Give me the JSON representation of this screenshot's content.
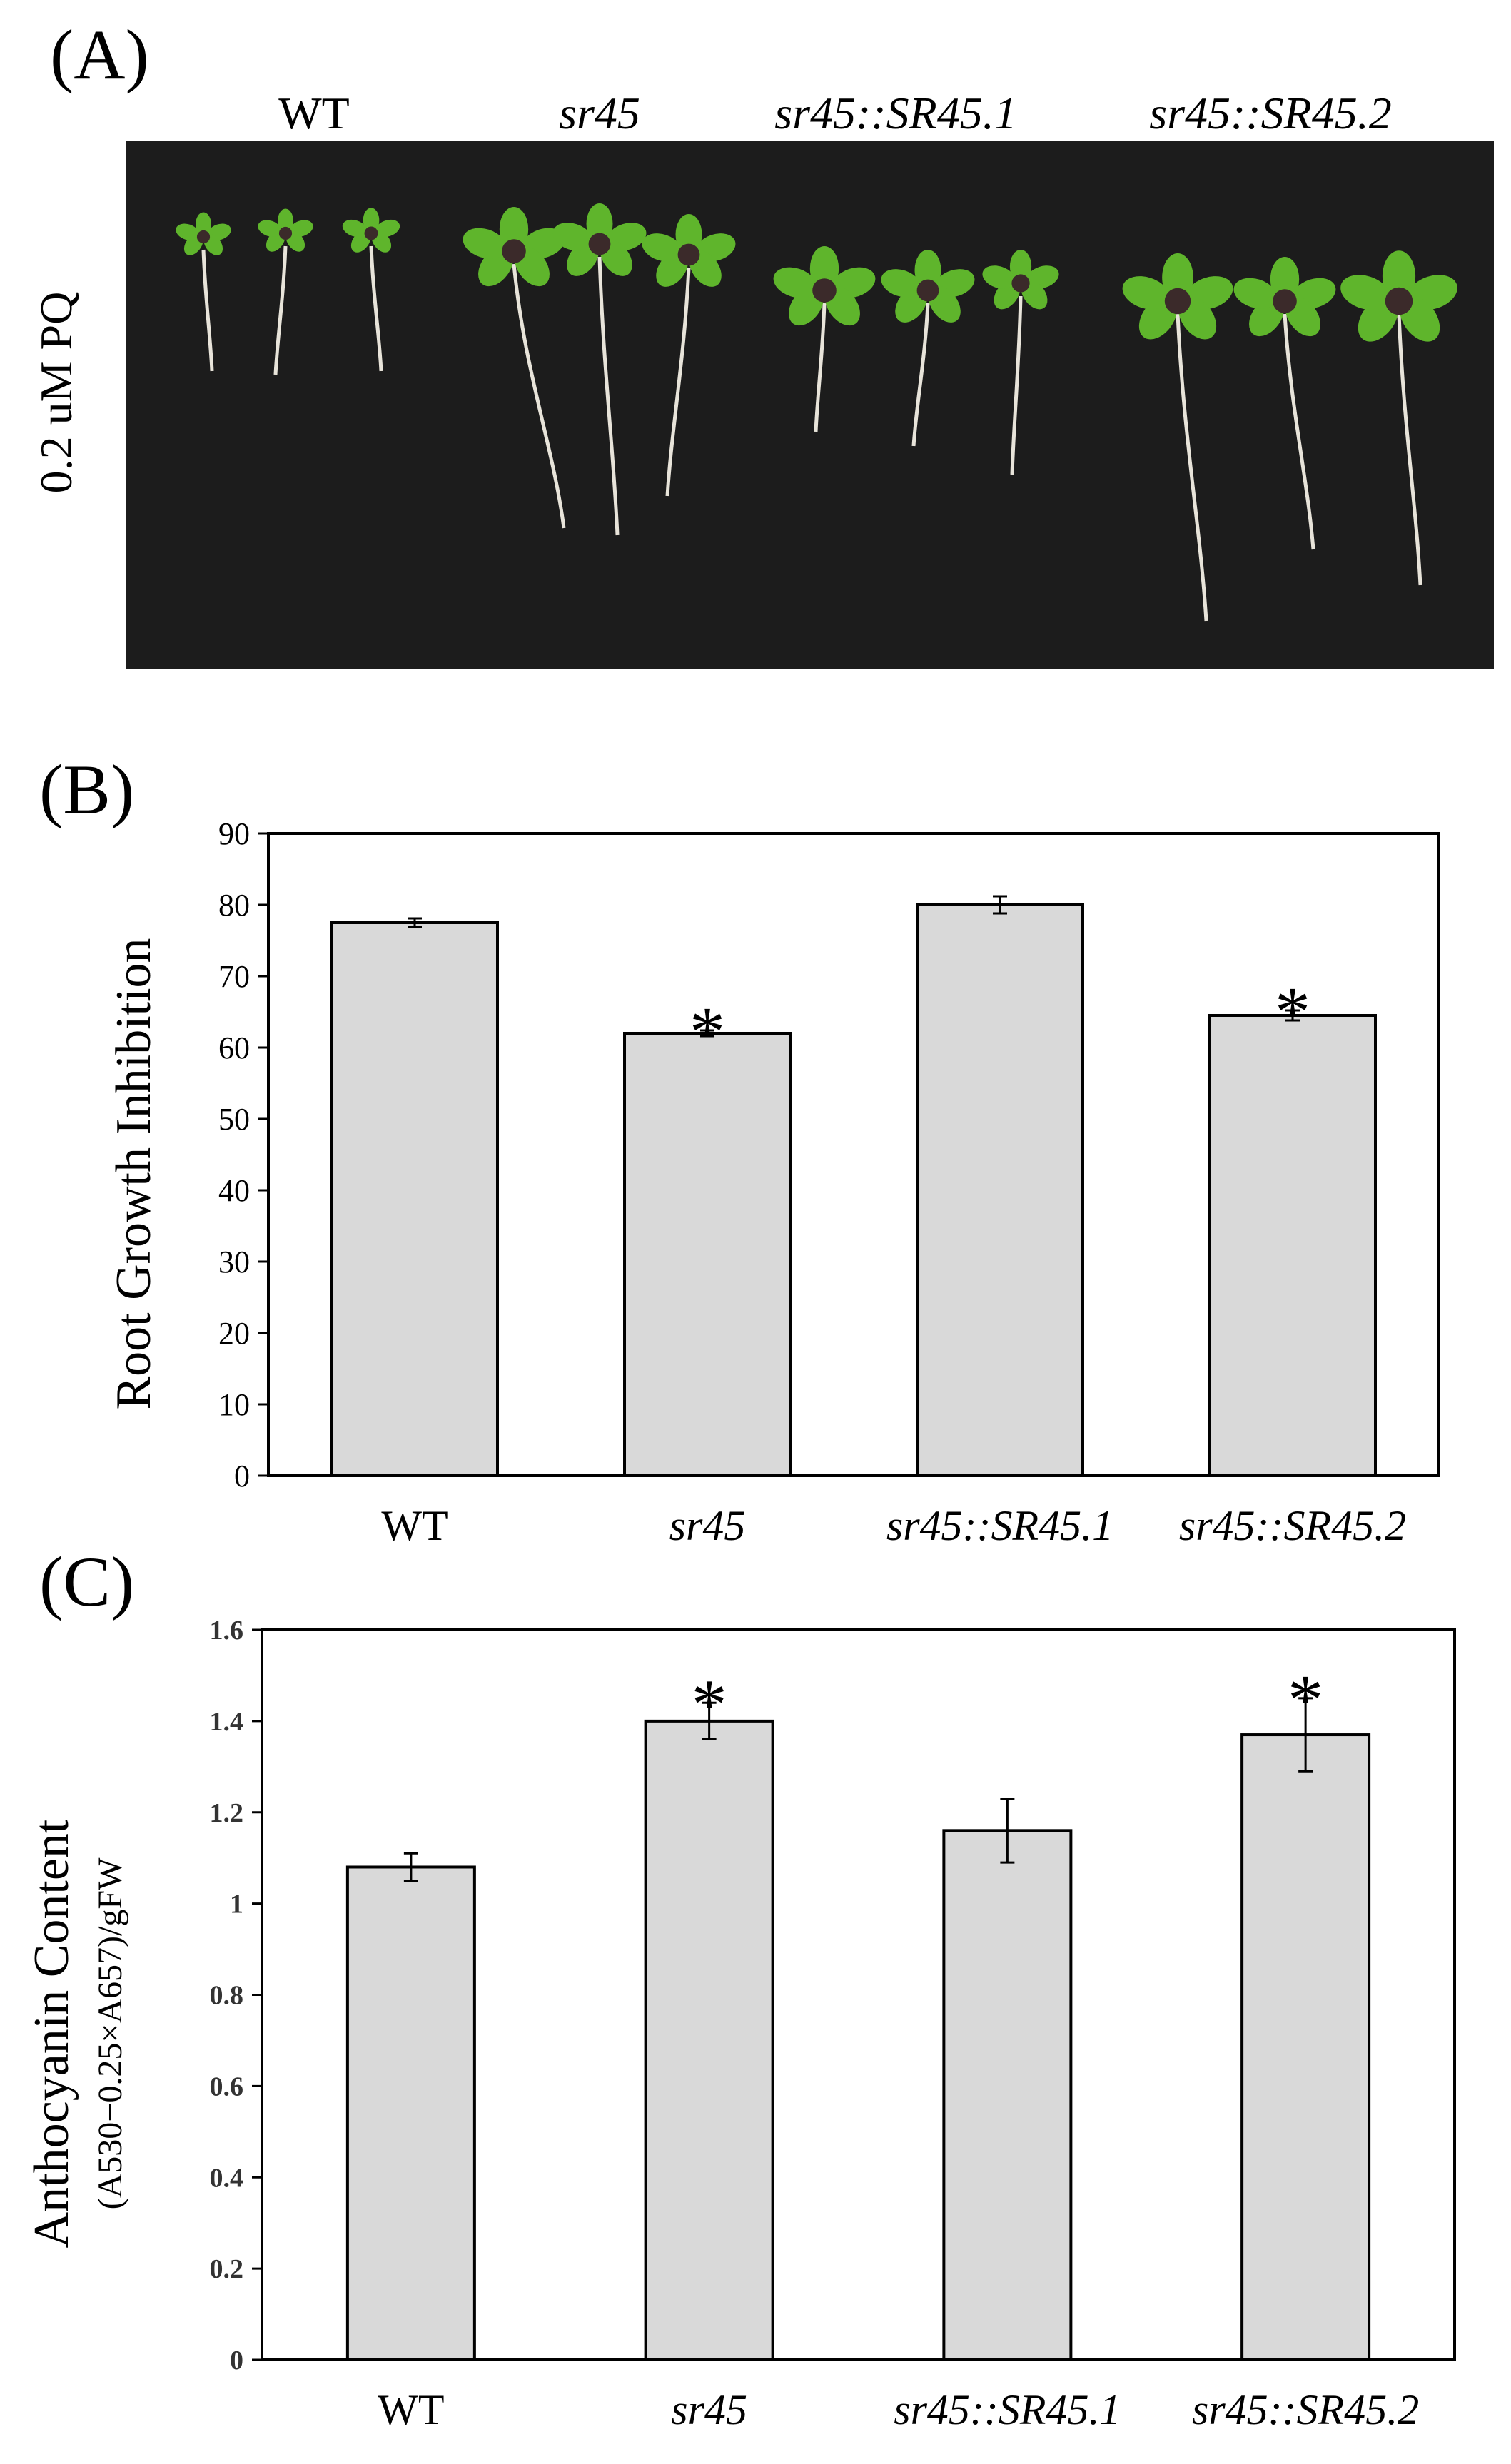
{
  "panels": {
    "a": {
      "label": "(A)",
      "condition": "0.2 uM PQ",
      "genotypes": [
        "WT",
        "sr45",
        "sr45::SR45.1",
        "sr45::SR45.2"
      ]
    },
    "b": {
      "label": "(B)"
    },
    "c": {
      "label": "(C)"
    }
  },
  "colors": {
    "bar_fill": "#d9d9d9",
    "bar_stroke": "#000000",
    "photo_bg": "#1c1c1c",
    "leaf": "#5fb52c",
    "root": "#e8e4da"
  },
  "chart_data": [
    {
      "type": "bar",
      "panel": "B",
      "categories": [
        "WT",
        "sr45",
        "sr45::SR45.1",
        "sr45::SR45.2"
      ],
      "values": [
        77.5,
        62.0,
        80.0,
        64.5
      ],
      "errors": [
        0.6,
        0.4,
        1.2,
        0.7
      ],
      "significance": [
        "",
        "*",
        "",
        "*"
      ],
      "ylabel": "Root Growth Inhibition",
      "ylim": [
        0,
        90
      ],
      "yticks": [
        "0",
        "10",
        "20",
        "30",
        "40",
        "50",
        "60",
        "70",
        "80",
        "90"
      ]
    },
    {
      "type": "bar",
      "panel": "C",
      "categories": [
        "WT",
        "sr45",
        "sr45::SR45.1",
        "sr45::SR45.2"
      ],
      "values": [
        1.08,
        1.4,
        1.16,
        1.37
      ],
      "errors": [
        0.03,
        0.04,
        0.07,
        0.08
      ],
      "significance": [
        "",
        "*",
        "",
        "*"
      ],
      "ylabel": "Anthocyanin Content",
      "ylabel_sub": "(A530−0.25×A657)/gFW",
      "ylim": [
        0,
        1.6
      ],
      "yticks": [
        "0",
        "0.2",
        "0.4",
        "0.6",
        "0.8",
        "1",
        "1.2",
        "1.4",
        "1.6"
      ]
    }
  ]
}
